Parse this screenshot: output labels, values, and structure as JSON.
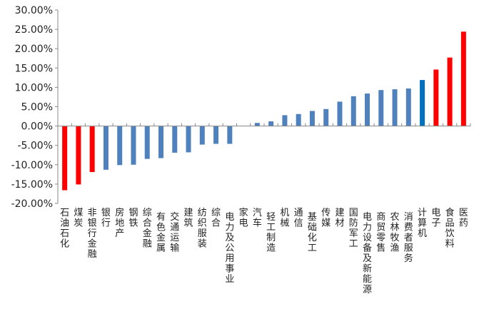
{
  "chart_data": {
    "type": "bar",
    "ylim": [
      -20,
      30
    ],
    "yticks": [
      -20,
      -15,
      -10,
      -5,
      0,
      5,
      10,
      15,
      20,
      25,
      30
    ],
    "ytick_labels": [
      "-20.00%",
      "-15.00%",
      "-10.00%",
      "-5.00%",
      "0.00%",
      "5.00%",
      "10.00%",
      "15.00%",
      "20.00%",
      "25.00%",
      "30.00%"
    ],
    "grid": false,
    "legend": "none",
    "colors": {
      "blue": "#4F81BD",
      "red": "#FF0000",
      "highlight": "#0070C0"
    },
    "categories": [
      "石油石化",
      "煤炭",
      "非银行金融",
      "银行",
      "房地产",
      "钢铁",
      "综合金融",
      "有色金属",
      "交通运输",
      "建筑",
      "纺织服装",
      "综合",
      "电力及公用事业",
      "家电",
      "汽车",
      "轻工制造",
      "机械",
      "通信",
      "基础化工",
      "传媒",
      "建材",
      "国防军工",
      "电力设备及新能源",
      "商贸零售",
      "农林牧渔",
      "消费者服务",
      "计算机",
      "电子",
      "食品饮料",
      "医药"
    ],
    "values": [
      -16.6,
      -15.1,
      -11.9,
      -11.3,
      -10.1,
      -10.0,
      -8.5,
      -8.3,
      -6.9,
      -6.8,
      -4.8,
      -4.6,
      -4.6,
      0.0,
      0.8,
      1.2,
      2.8,
      3.1,
      3.9,
      4.4,
      6.3,
      7.7,
      8.4,
      9.3,
      9.5,
      9.7,
      11.9,
      14.6,
      17.7,
      24.4
    ],
    "bar_colors": [
      "#FF0000",
      "#FF0000",
      "#FF0000",
      "#4F81BD",
      "#4F81BD",
      "#4F81BD",
      "#4F81BD",
      "#4F81BD",
      "#4F81BD",
      "#4F81BD",
      "#4F81BD",
      "#4F81BD",
      "#4F81BD",
      "#4F81BD",
      "#4F81BD",
      "#4F81BD",
      "#4F81BD",
      "#4F81BD",
      "#4F81BD",
      "#4F81BD",
      "#4F81BD",
      "#4F81BD",
      "#4F81BD",
      "#4F81BD",
      "#4F81BD",
      "#4F81BD",
      "#0070C0",
      "#FF0000",
      "#FF0000",
      "#FF0000"
    ]
  }
}
